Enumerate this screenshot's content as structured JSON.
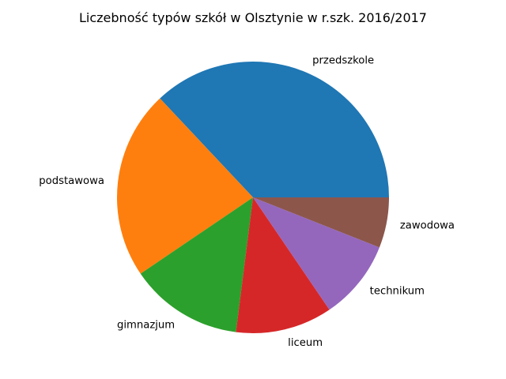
{
  "chart_data": {
    "type": "pie",
    "title": "Liczebność typów szkół w Olsztynie w r.szk. 2016/2017",
    "categories": [
      "przedszkole",
      "podstawowa",
      "gimnazjum",
      "liceum",
      "technikum",
      "zawodowa"
    ],
    "values": [
      37,
      22.5,
      13.5,
      11.5,
      9.5,
      6
    ],
    "colors": [
      "#1f77b4",
      "#ff7f0e",
      "#2ca02c",
      "#d62728",
      "#9467bd",
      "#8c564b"
    ],
    "start_angle_deg": 0,
    "direction": "counterclockwise",
    "legend": "none"
  }
}
